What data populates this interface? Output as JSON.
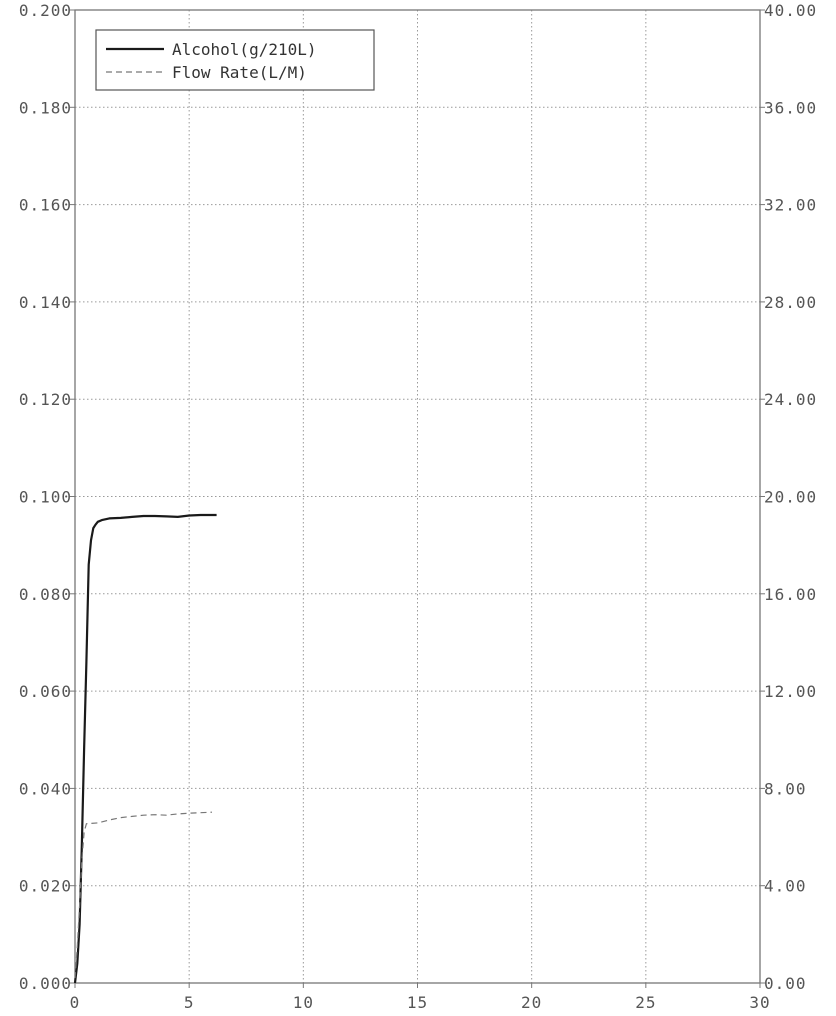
{
  "chart_data": {
    "type": "line",
    "title": "",
    "xlabel": "",
    "ylabel": "",
    "y2label": "",
    "xlim": [
      0,
      30
    ],
    "ylim": [
      0,
      0.2
    ],
    "y2lim": [
      0,
      40
    ],
    "grid": true,
    "legend_position": "top-left",
    "x_ticks": [
      "0",
      "5",
      "10",
      "15",
      "20",
      "25",
      "30"
    ],
    "y_ticks": [
      "0.000",
      "0.020",
      "0.040",
      "0.060",
      "0.080",
      "0.100",
      "0.120",
      "0.140",
      "0.160",
      "0.180",
      "0.200"
    ],
    "y2_ticks": [
      "0.00",
      "4.00",
      "8.00",
      "12.00",
      "16.00",
      "20.00",
      "24.00",
      "28.00",
      "32.00",
      "36.00",
      "40.00"
    ],
    "series": [
      {
        "name": "Alcohol(g/210L)",
        "axis": "left",
        "style": "solid",
        "color": "#1a1a1a",
        "x": [
          0,
          0.1,
          0.2,
          0.3,
          0.4,
          0.5,
          0.6,
          0.7,
          0.8,
          0.9,
          1.0,
          1.2,
          1.5,
          2.0,
          2.5,
          3.0,
          3.5,
          4.0,
          4.5,
          5.0,
          5.5,
          6.2
        ],
        "y": [
          0,
          0.004,
          0.012,
          0.028,
          0.048,
          0.066,
          0.086,
          0.091,
          0.0935,
          0.0942,
          0.0948,
          0.0952,
          0.0955,
          0.0956,
          0.0958,
          0.096,
          0.096,
          0.0959,
          0.0958,
          0.0961,
          0.0962,
          0.0962
        ]
      },
      {
        "name": "Flow Rate(L/M)",
        "axis": "right",
        "style": "dashed",
        "color": "#777777",
        "x": [
          0,
          0.1,
          0.2,
          0.3,
          0.4,
          0.5,
          1.0,
          1.5,
          2.0,
          2.5,
          3.0,
          3.5,
          4.0,
          4.5,
          5.0,
          5.5,
          6.0
        ],
        "y": [
          0.2,
          1.5,
          3.2,
          5.0,
          6.2,
          6.55,
          6.58,
          6.7,
          6.8,
          6.85,
          6.9,
          6.92,
          6.9,
          6.95,
          6.98,
          7.0,
          7.02
        ]
      }
    ]
  }
}
